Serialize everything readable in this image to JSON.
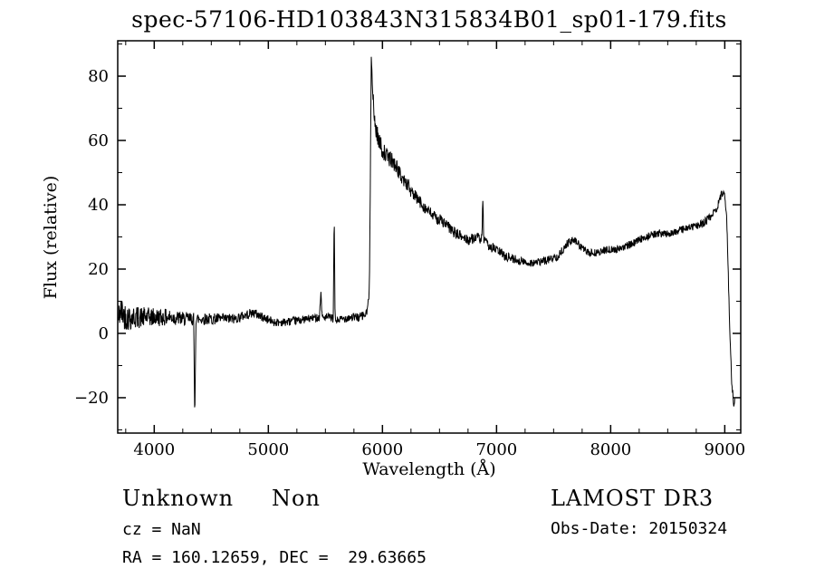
{
  "title": "spec-57106-HD103843N315834B01_sp01-179.fits",
  "xlabel": "Wavelength (Å)",
  "ylabel": "Flux (relative)",
  "footer": {
    "target_class": "Unknown",
    "target_subclass": "Non",
    "survey": "LAMOST DR3",
    "cz": "cz = NaN",
    "obs_date": "Obs-Date: 20150324",
    "ra_dec": "RA = 160.12659, DEC =  29.63665"
  },
  "chart_data": {
    "type": "line",
    "title": "spec-57106-HD103843N315834B01_sp01-179.fits",
    "xlabel": "Wavelength (Å)",
    "ylabel": "Flux (relative)",
    "xlim": [
      3680,
      9140
    ],
    "ylim": [
      -31,
      91
    ],
    "x_data_range": [
      3685,
      9090
    ],
    "xticks": [
      4000,
      5000,
      6000,
      7000,
      8000,
      9000
    ],
    "yticks": [
      -20,
      0,
      20,
      40,
      60,
      80
    ],
    "x_minor_step": 250,
    "y_minor_step": 10,
    "grid": false,
    "legend": "none",
    "line_color": "#000000",
    "background_color": "#ffffff",
    "continuum_anchors": [
      [
        3680,
        3
      ],
      [
        3700,
        7
      ],
      [
        3760,
        5
      ],
      [
        3850,
        5
      ],
      [
        3950,
        5
      ],
      [
        4050,
        5
      ],
      [
        4150,
        5
      ],
      [
        4250,
        4.5
      ],
      [
        4400,
        4.5
      ],
      [
        4550,
        4.5
      ],
      [
        4700,
        4.5
      ],
      [
        4870,
        6.5
      ],
      [
        4950,
        5
      ],
      [
        5050,
        3.5
      ],
      [
        5150,
        3.5
      ],
      [
        5250,
        4
      ],
      [
        5350,
        4.5
      ],
      [
        5430,
        5
      ],
      [
        5460,
        5
      ],
      [
        5490,
        5
      ],
      [
        5540,
        5
      ],
      [
        5600,
        4
      ],
      [
        5700,
        5
      ],
      [
        5800,
        5
      ],
      [
        5860,
        6
      ],
      [
        5885,
        12
      ],
      [
        5895,
        55
      ],
      [
        5902,
        88
      ],
      [
        5910,
        78
      ],
      [
        5925,
        68
      ],
      [
        5945,
        63
      ],
      [
        5970,
        60
      ],
      [
        6000,
        57
      ],
      [
        6040,
        55
      ],
      [
        6080,
        54
      ],
      [
        6120,
        52
      ],
      [
        6160,
        49
      ],
      [
        6200,
        47
      ],
      [
        6250,
        44
      ],
      [
        6300,
        42
      ],
      [
        6350,
        40
      ],
      [
        6400,
        38
      ],
      [
        6460,
        36
      ],
      [
        6520,
        35
      ],
      [
        6580,
        33
      ],
      [
        6640,
        31
      ],
      [
        6700,
        30
      ],
      [
        6760,
        29
      ],
      [
        6820,
        30
      ],
      [
        6880,
        29
      ],
      [
        6940,
        27
      ],
      [
        7000,
        26
      ],
      [
        7080,
        24
      ],
      [
        7160,
        23
      ],
      [
        7260,
        22
      ],
      [
        7360,
        22
      ],
      [
        7460,
        23
      ],
      [
        7540,
        24
      ],
      [
        7620,
        28
      ],
      [
        7680,
        29
      ],
      [
        7740,
        27
      ],
      [
        7800,
        25
      ],
      [
        7880,
        25
      ],
      [
        7960,
        26
      ],
      [
        8040,
        26
      ],
      [
        8120,
        27
      ],
      [
        8200,
        28
      ],
      [
        8300,
        30
      ],
      [
        8400,
        31
      ],
      [
        8500,
        31
      ],
      [
        8600,
        32
      ],
      [
        8700,
        33
      ],
      [
        8800,
        34
      ],
      [
        8870,
        36
      ],
      [
        8930,
        39
      ],
      [
        8970,
        43
      ],
      [
        8995,
        44
      ],
      [
        9015,
        38
      ],
      [
        9030,
        20
      ],
      [
        9045,
        0
      ],
      [
        9060,
        -15
      ],
      [
        9080,
        -22
      ],
      [
        9090,
        -20
      ]
    ],
    "noise_anchors": [
      [
        3680,
        5
      ],
      [
        3780,
        4
      ],
      [
        3900,
        3.2
      ],
      [
        4050,
        2.8
      ],
      [
        4250,
        2.2
      ],
      [
        4500,
        1.8
      ],
      [
        4800,
        1.5
      ],
      [
        5100,
        1.3
      ],
      [
        5500,
        1.2
      ],
      [
        5850,
        1.5
      ],
      [
        5920,
        3
      ],
      [
        6050,
        2.5
      ],
      [
        6250,
        2
      ],
      [
        6600,
        1.8
      ],
      [
        7000,
        1.5
      ],
      [
        7400,
        1.3
      ],
      [
        7900,
        1.2
      ],
      [
        8500,
        1.2
      ],
      [
        9000,
        1.3
      ],
      [
        9140,
        1.5
      ]
    ],
    "spikes": [
      [
        4355,
        -27,
        10
      ],
      [
        5460,
        13,
        12
      ],
      [
        5577,
        38,
        8
      ],
      [
        6230,
        48,
        8
      ],
      [
        6880,
        42,
        8
      ]
    ]
  }
}
